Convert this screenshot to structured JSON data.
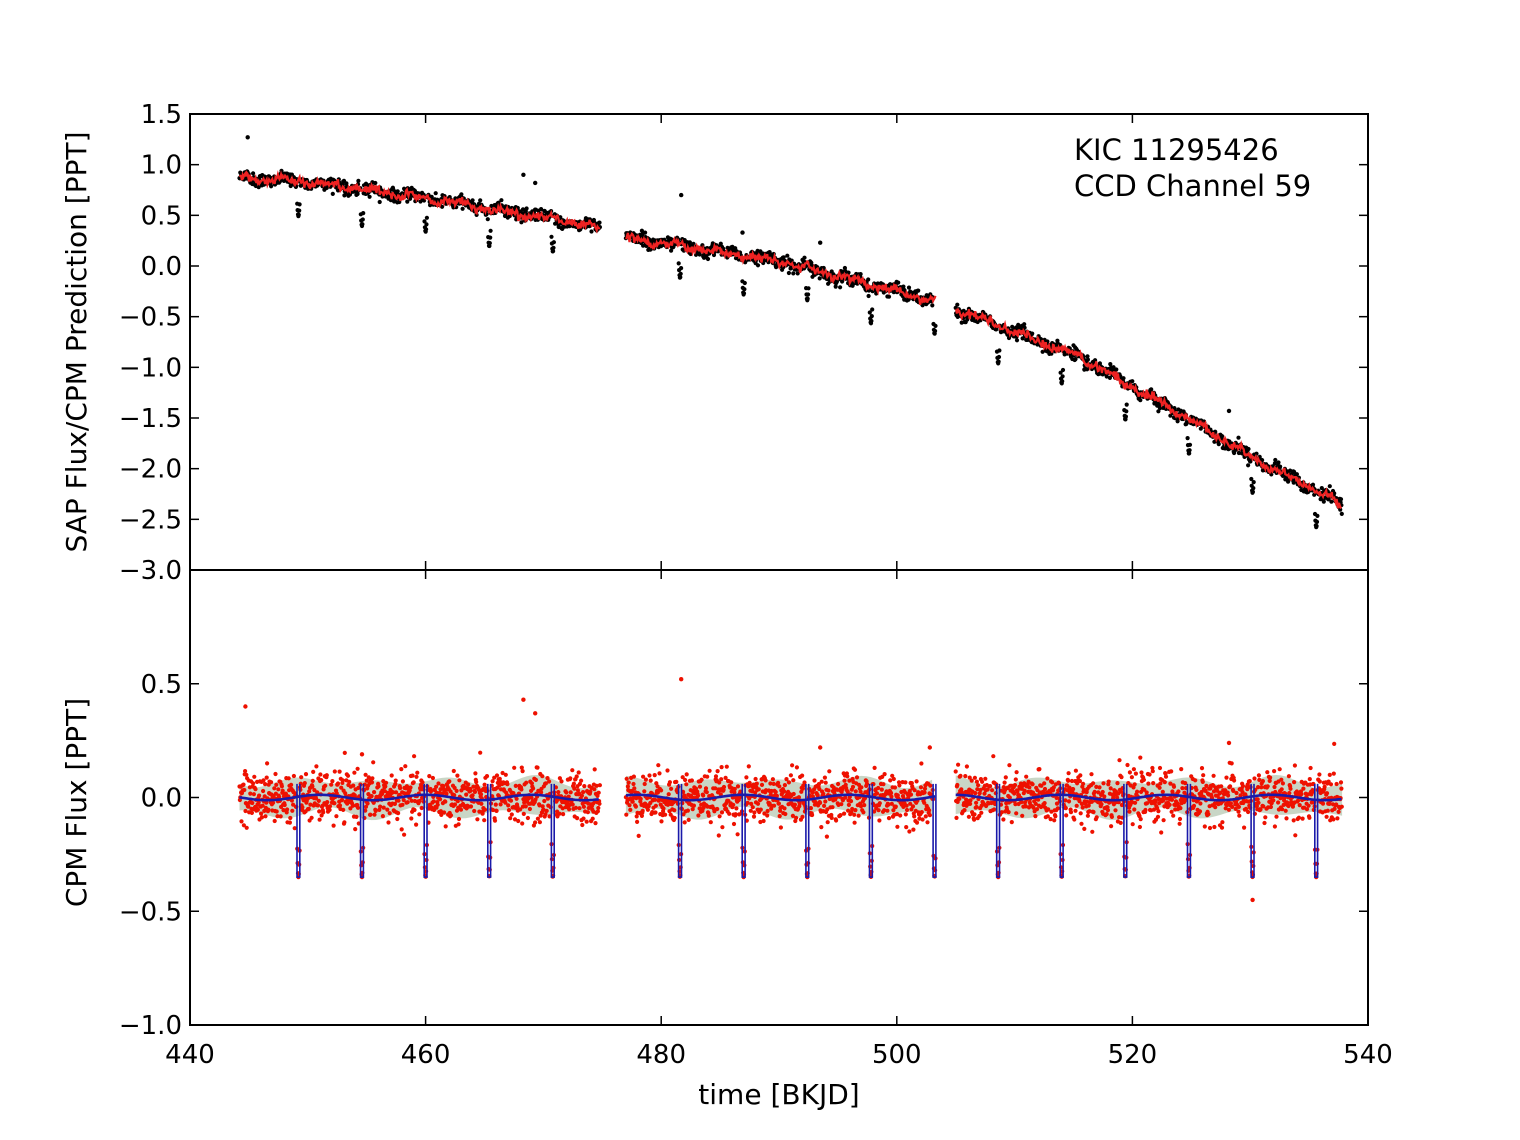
{
  "chart_data": [
    {
      "type": "scatter",
      "panel": "top",
      "ylabel": "SAP Flux/CPM Prediction [PPT]",
      "xlim": [
        440,
        540
      ],
      "ylim": [
        -3.0,
        1.5
      ],
      "y_ticks": [
        "1.5",
        "1.0",
        "0.5",
        "0.0",
        "−0.5",
        "−1.0",
        "−1.5",
        "−2.0",
        "−2.5",
        "−3.0"
      ],
      "annotation": [
        "KIC 11295426",
        "CCD Channel 59"
      ],
      "segments": [
        [
          444.2,
          474.8
        ],
        [
          477.0,
          503.3
        ],
        [
          505.0,
          537.8
        ]
      ],
      "transit_times": [
        449.2,
        454.6,
        460.0,
        465.4,
        470.8,
        481.6,
        487.0,
        492.4,
        497.8,
        503.2,
        508.6,
        514.0,
        519.4,
        524.8,
        530.2,
        535.6
      ],
      "transit_depth": 0.35,
      "trend": {
        "x": [
          444.2,
          450,
          460,
          470,
          474.8,
          477,
          490,
          503.3,
          505,
          515,
          525,
          530,
          537.8
        ],
        "y": [
          0.87,
          0.83,
          0.67,
          0.48,
          0.38,
          0.28,
          0.05,
          -0.35,
          -0.43,
          -0.87,
          -1.52,
          -1.88,
          -2.35
        ]
      },
      "series": [
        {
          "color": "#000000",
          "kind": "points",
          "noise": 0.03
        },
        {
          "color": "#ee2222",
          "kind": "line",
          "noise": 0.02
        }
      ],
      "outliers": [
        {
          "x": 444.9,
          "y": 1.27
        },
        {
          "x": 468.3,
          "y": 0.9
        },
        {
          "x": 469.3,
          "y": 0.82
        },
        {
          "x": 481.7,
          "y": 0.7
        },
        {
          "x": 486.9,
          "y": 0.33
        },
        {
          "x": 493.5,
          "y": 0.23
        },
        {
          "x": 528.2,
          "y": -1.43
        }
      ]
    },
    {
      "type": "scatter",
      "panel": "bottom",
      "xlabel": "time [BKJD]",
      "ylabel": "CPM Flux [PPT]",
      "xlim": [
        440,
        540
      ],
      "ylim": [
        -1.0,
        1.0
      ],
      "x_ticks": [
        "440",
        "460",
        "480",
        "500",
        "520",
        "540"
      ],
      "y_ticks": [
        "0.5",
        "0.0",
        "−0.5",
        "−1.0"
      ],
      "segments": [
        [
          444.2,
          474.8
        ],
        [
          477.0,
          503.3
        ],
        [
          505.0,
          537.8
        ]
      ],
      "transit_times": [
        449.2,
        454.6,
        460.0,
        465.4,
        470.8,
        481.6,
        487.0,
        492.4,
        497.8,
        503.2,
        508.6,
        514.0,
        519.4,
        524.8,
        530.2,
        535.6
      ],
      "transit_depth": 0.35,
      "series": [
        {
          "color": "#ee1100",
          "kind": "points",
          "noise": 0.055
        },
        {
          "color": "#1a1aaa",
          "kind": "model"
        },
        {
          "color": "#9db597",
          "kind": "band",
          "halfwidth": 0.07
        }
      ],
      "outliers": [
        {
          "x": 444.7,
          "y": 0.4
        },
        {
          "x": 468.3,
          "y": 0.43
        },
        {
          "x": 469.3,
          "y": 0.37
        },
        {
          "x": 481.7,
          "y": 0.52
        },
        {
          "x": 493.5,
          "y": 0.22
        },
        {
          "x": 502.8,
          "y": 0.22
        },
        {
          "x": 528.2,
          "y": 0.24
        },
        {
          "x": 530.2,
          "y": -0.45
        },
        {
          "x": 454.6,
          "y": 0.19
        }
      ]
    }
  ],
  "colors": {
    "axis": "#000000",
    "background": "#ffffff"
  }
}
